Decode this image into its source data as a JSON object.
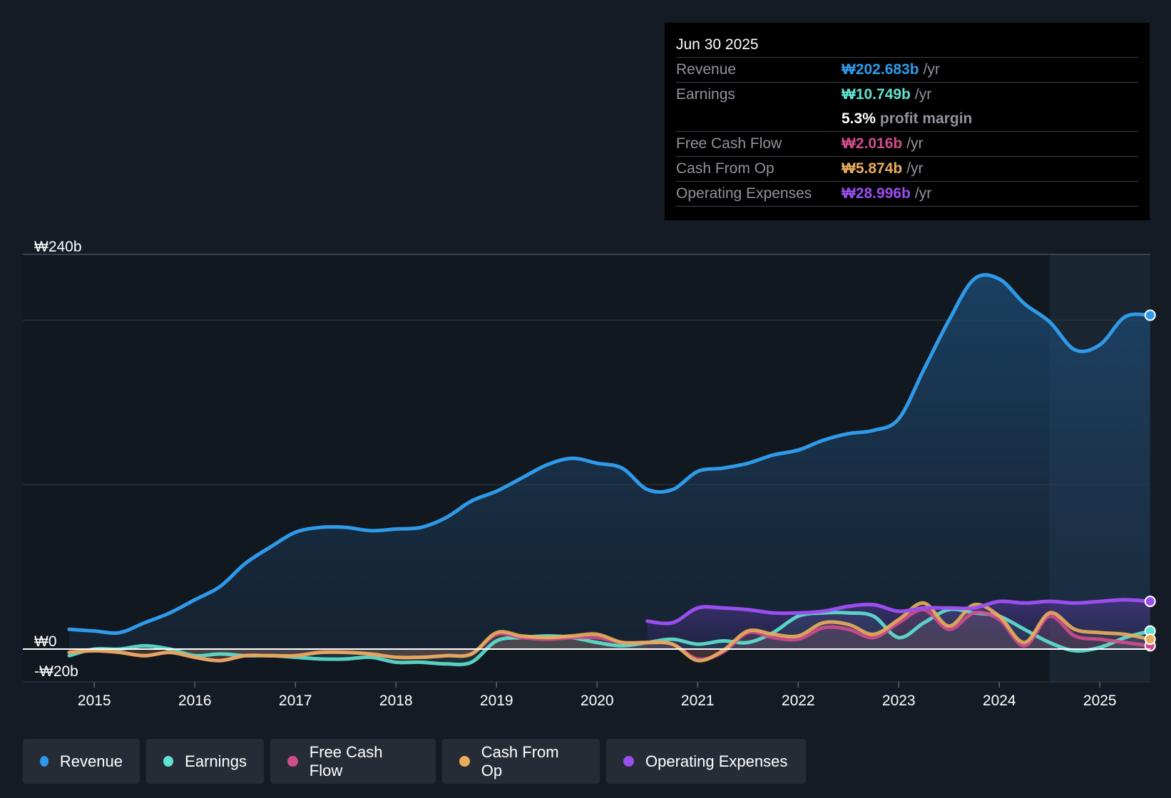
{
  "tooltip": {
    "date": "Jun 30 2025",
    "rows": [
      {
        "label": "Revenue",
        "value": "₩202.683b",
        "unit": "/yr",
        "color": "#2f9ae9"
      },
      {
        "label": "Earnings",
        "value": "₩10.749b",
        "unit": "/yr",
        "color": "#5fe3d2"
      },
      {
        "label": "",
        "margin_value": "5.3%",
        "margin_text": "profit margin"
      },
      {
        "label": "Free Cash Flow",
        "value": "₩2.016b",
        "unit": "/yr",
        "color": "#d04d8c"
      },
      {
        "label": "Cash From Op",
        "value": "₩5.874b",
        "unit": "/yr",
        "color": "#e9ae5c"
      },
      {
        "label": "Operating Expenses",
        "value": "₩28.996b",
        "unit": "/yr",
        "color": "#9b4ef0"
      }
    ]
  },
  "legend": [
    {
      "label": "Revenue",
      "color": "#2f9ae9"
    },
    {
      "label": "Earnings",
      "color": "#5fe3d2"
    },
    {
      "label": "Free Cash Flow",
      "color": "#d04d8c"
    },
    {
      "label": "Cash From Op",
      "color": "#e9ae5c"
    },
    {
      "label": "Operating Expenses",
      "color": "#9b4ef0"
    }
  ],
  "chart_data": {
    "type": "line",
    "title": "",
    "ylim": [
      -20,
      240
    ],
    "xlim": [
      2014.25,
      2025.5
    ],
    "forecast_start": 2024.5,
    "y_tick_labels": [
      {
        "value": 240,
        "label": "₩240b"
      },
      {
        "value": 0,
        "label": "₩0"
      },
      {
        "value": -20,
        "label": "-₩20b"
      }
    ],
    "gridlines": [
      240,
      200,
      100
    ],
    "x_ticks": [
      2015,
      2016,
      2017,
      2018,
      2019,
      2020,
      2021,
      2022,
      2023,
      2024,
      2025
    ],
    "x_tick_labels": [
      "2015",
      "2016",
      "2017",
      "2018",
      "2019",
      "2020",
      "2021",
      "2022",
      "2023",
      "2024",
      "2025"
    ],
    "series": [
      {
        "name": "Revenue",
        "color": "#2f9ae9",
        "fill": true,
        "x": [
          2014.75,
          2015.0,
          2015.25,
          2015.5,
          2015.75,
          2016.0,
          2016.25,
          2016.5,
          2016.75,
          2017.0,
          2017.25,
          2017.5,
          2017.75,
          2018.0,
          2018.25,
          2018.5,
          2018.75,
          2019.0,
          2019.25,
          2019.5,
          2019.75,
          2020.0,
          2020.25,
          2020.5,
          2020.75,
          2021.0,
          2021.25,
          2021.5,
          2021.75,
          2022.0,
          2022.25,
          2022.5,
          2022.75,
          2023.0,
          2023.25,
          2023.5,
          2023.75,
          2024.0,
          2024.25,
          2024.5,
          2024.75,
          2025.0,
          2025.25,
          2025.5
        ],
        "y": [
          12,
          11,
          10,
          16,
          22,
          30,
          38,
          52,
          62,
          71,
          74,
          74,
          72,
          73,
          74,
          80,
          90,
          96,
          104,
          112,
          116,
          113,
          110,
          97,
          97,
          108,
          110,
          113,
          118,
          121,
          127,
          131,
          133,
          140,
          170,
          200,
          225,
          225,
          210,
          199,
          182,
          185,
          202,
          203
        ]
      },
      {
        "name": "Earnings",
        "color": "#5fe3d2",
        "x": [
          2014.75,
          2015.0,
          2015.25,
          2015.5,
          2015.75,
          2016.0,
          2016.25,
          2016.5,
          2016.75,
          2017.0,
          2017.25,
          2017.5,
          2017.75,
          2018.0,
          2018.25,
          2018.5,
          2018.75,
          2019.0,
          2019.25,
          2019.5,
          2019.75,
          2020.0,
          2020.25,
          2020.5,
          2020.75,
          2021.0,
          2021.25,
          2021.5,
          2021.75,
          2022.0,
          2022.25,
          2022.5,
          2022.75,
          2023.0,
          2023.25,
          2023.5,
          2023.75,
          2024.0,
          2024.25,
          2024.5,
          2024.75,
          2025.0,
          2025.25,
          2025.5
        ],
        "y": [
          -4,
          0,
          0,
          2,
          0,
          -4,
          -3,
          -4,
          -4,
          -5,
          -6,
          -6,
          -5,
          -8,
          -8,
          -9,
          -8,
          5,
          7,
          8,
          7,
          4,
          2,
          4,
          6,
          3,
          5,
          4,
          10,
          20,
          22,
          22,
          20,
          7,
          16,
          24,
          22,
          20,
          12,
          4,
          -1,
          1,
          7,
          11
        ]
      },
      {
        "name": "Free Cash Flow",
        "color": "#d04d8c",
        "x": [
          2014.75,
          2015.0,
          2015.25,
          2015.5,
          2015.75,
          2016.0,
          2016.25,
          2016.5,
          2016.75,
          2017.0,
          2017.25,
          2017.5,
          2017.75,
          2018.0,
          2018.25,
          2018.5,
          2018.75,
          2019.0,
          2019.25,
          2019.5,
          2019.75,
          2020.0,
          2020.25,
          2020.5,
          2020.75,
          2021.0,
          2021.25,
          2021.5,
          2021.75,
          2022.0,
          2022.25,
          2022.5,
          2022.75,
          2023.0,
          2023.25,
          2023.5,
          2023.75,
          2024.0,
          2024.25,
          2024.5,
          2024.75,
          2025.0,
          2025.25,
          2025.5
        ],
        "y": [
          -2,
          -1,
          -2,
          -4,
          -2,
          -5,
          -7,
          -4,
          -4,
          -4,
          -2,
          -2,
          -3,
          -5,
          -5,
          -4,
          -3,
          9,
          7,
          6,
          7,
          7,
          4,
          4,
          3,
          -6,
          -2,
          10,
          7,
          6,
          13,
          12,
          7,
          16,
          24,
          12,
          22,
          18,
          2,
          20,
          8,
          6,
          4,
          2
        ]
      },
      {
        "name": "Cash From Op",
        "color": "#e9ae5c",
        "x": [
          2014.75,
          2015.0,
          2015.25,
          2015.5,
          2015.75,
          2016.0,
          2016.25,
          2016.5,
          2016.75,
          2017.0,
          2017.25,
          2017.5,
          2017.75,
          2018.0,
          2018.25,
          2018.5,
          2018.75,
          2019.0,
          2019.25,
          2019.5,
          2019.75,
          2020.0,
          2020.25,
          2020.5,
          2020.75,
          2021.0,
          2021.25,
          2021.5,
          2021.75,
          2022.0,
          2022.25,
          2022.5,
          2022.75,
          2023.0,
          2023.25,
          2023.5,
          2023.75,
          2024.0,
          2024.25,
          2024.5,
          2024.75,
          2025.0,
          2025.25,
          2025.5
        ],
        "y": [
          -2,
          -1,
          -2,
          -4,
          -2,
          -5,
          -7,
          -4,
          -4,
          -4,
          -2,
          -2,
          -3,
          -5,
          -5,
          -4,
          -3,
          10,
          8,
          7,
          8,
          9,
          4,
          4,
          3,
          -7,
          -1,
          11,
          9,
          8,
          16,
          15,
          9,
          18,
          28,
          14,
          27,
          20,
          4,
          22,
          12,
          10,
          9,
          6
        ]
      },
      {
        "name": "Operating Expenses",
        "color": "#9b4ef0",
        "fill": true,
        "x": [
          2020.5,
          2020.75,
          2021.0,
          2021.25,
          2021.5,
          2021.75,
          2022.0,
          2022.25,
          2022.5,
          2022.75,
          2023.0,
          2023.25,
          2023.5,
          2023.75,
          2024.0,
          2024.25,
          2024.5,
          2024.75,
          2025.0,
          2025.25,
          2025.5
        ],
        "y": [
          17,
          16,
          25,
          25,
          24,
          22,
          22,
          23,
          26,
          27,
          23,
          25,
          25,
          25,
          29,
          28,
          29,
          28,
          29,
          30,
          29
        ]
      }
    ]
  }
}
